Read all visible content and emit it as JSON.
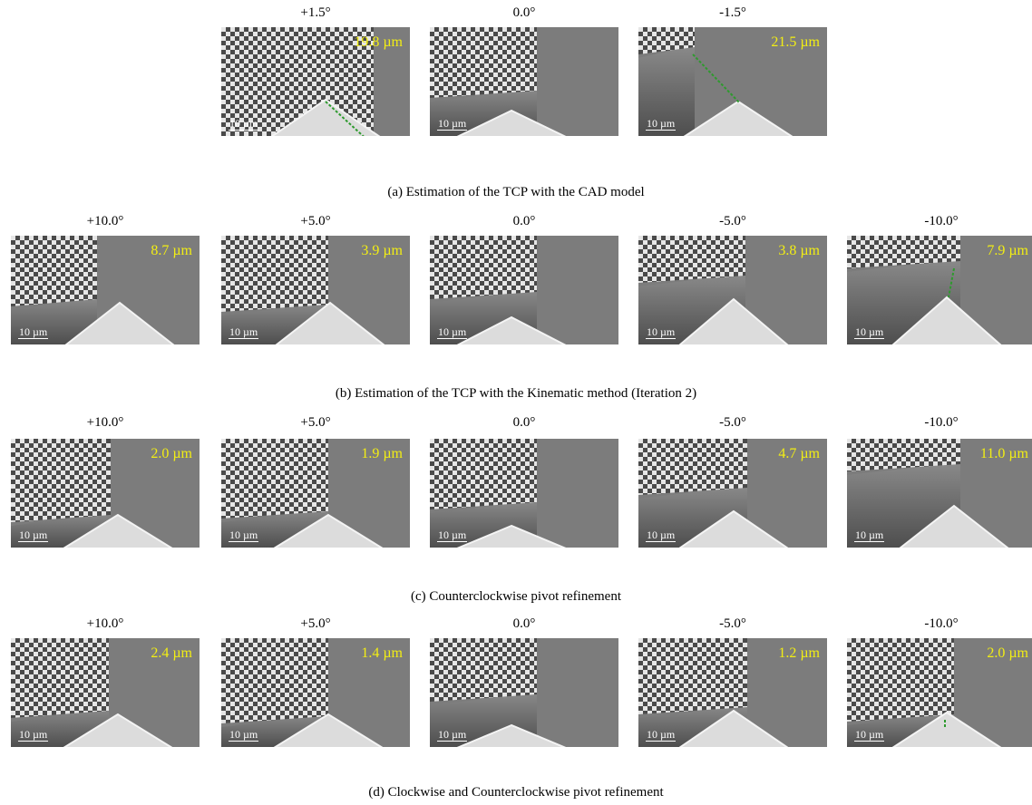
{
  "rows": [
    {
      "caption": "(a) Estimation of the TCP with the CAD model",
      "panels": [
        {
          "angle": "+1.5°",
          "measurement": "19.8 µm",
          "scale_bar": "10 µm"
        },
        {
          "angle": "0.0°",
          "measurement": "",
          "scale_bar": "10 µm"
        },
        {
          "angle": "-1.5°",
          "measurement": "21.5 µm",
          "scale_bar": "10 µm"
        }
      ]
    },
    {
      "caption": "(b) Estimation of the TCP with the Kinematic method (Iteration 2)",
      "panels": [
        {
          "angle": "+10.0°",
          "measurement": "8.7 µm",
          "scale_bar": "10 µm"
        },
        {
          "angle": "+5.0°",
          "measurement": "3.9 µm",
          "scale_bar": "10 µm"
        },
        {
          "angle": "0.0°",
          "measurement": "",
          "scale_bar": "10 µm"
        },
        {
          "angle": "-5.0°",
          "measurement": "3.8 µm",
          "scale_bar": "10 µm"
        },
        {
          "angle": "-10.0°",
          "measurement": "7.9 µm",
          "scale_bar": "10 µm"
        }
      ]
    },
    {
      "caption": "(c) Counterclockwise pivot refinement",
      "panels": [
        {
          "angle": "+10.0°",
          "measurement": "2.0 µm",
          "scale_bar": "10 µm"
        },
        {
          "angle": "+5.0°",
          "measurement": "1.9 µm",
          "scale_bar": "10 µm"
        },
        {
          "angle": "0.0°",
          "measurement": "",
          "scale_bar": "10 µm"
        },
        {
          "angle": "-5.0°",
          "measurement": "4.7 µm",
          "scale_bar": "10 µm"
        },
        {
          "angle": "-10.0°",
          "measurement": "11.0 µm",
          "scale_bar": "10 µm"
        }
      ]
    },
    {
      "caption": "(d) Clockwise and  Counterclockwise pivot refinement",
      "panels": [
        {
          "angle": "+10.0°",
          "measurement": "2.4 µm",
          "scale_bar": "10 µm"
        },
        {
          "angle": "+5.0°",
          "measurement": "1.4 µm",
          "scale_bar": "10 µm"
        },
        {
          "angle": "0.0°",
          "measurement": "",
          "scale_bar": "10 µm"
        },
        {
          "angle": "-5.0°",
          "measurement": "1.2 µm",
          "scale_bar": "10 µm"
        },
        {
          "angle": "-10.0°",
          "measurement": "2.0 µm",
          "scale_bar": "10 µm"
        }
      ]
    }
  ],
  "colors": {
    "measurement_text": "#f2ee14",
    "guide_line": "#2e9a2e",
    "background_gray": "#7c7c7c",
    "checker_light": "#e6e6e6",
    "checker_dark": "#4a4a4a",
    "tip": "#dcdcdc"
  }
}
